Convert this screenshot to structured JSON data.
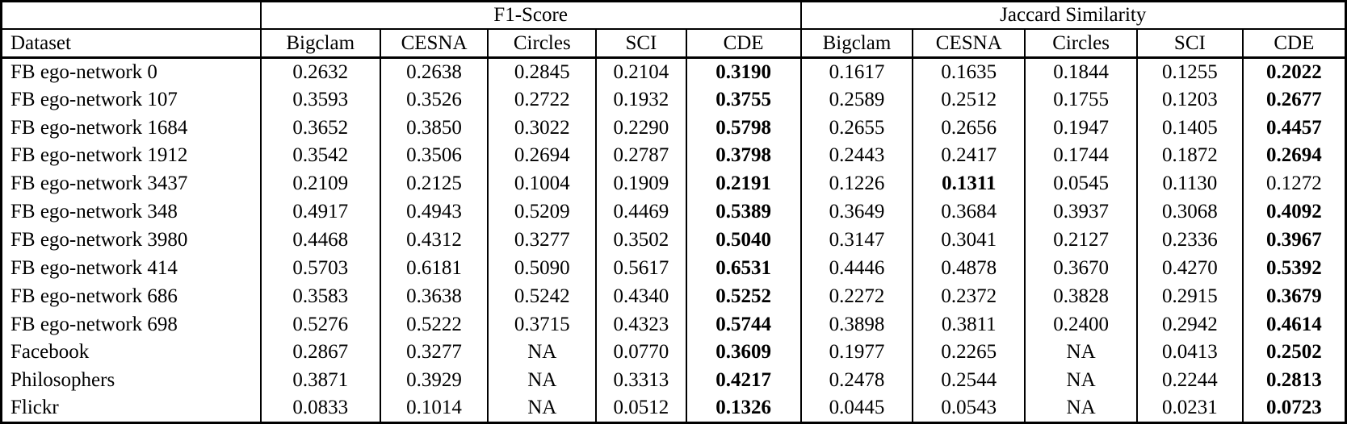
{
  "table": {
    "group_headers": [
      {
        "label": "",
        "span": 1
      },
      {
        "label": "F1-Score",
        "span": 5
      },
      {
        "label": "Jaccard Similarity",
        "span": 5
      }
    ],
    "column_headers": [
      "Dataset",
      "Bigclam",
      "CESNA",
      "Circles",
      "SCI",
      "CDE",
      "Bigclam",
      "CESNA",
      "Circles",
      "SCI",
      "CDE"
    ],
    "rows": [
      {
        "dataset": "FB ego-network 0",
        "values": [
          "0.2632",
          "0.2638",
          "0.2845",
          "0.2104",
          "0.3190",
          "0.1617",
          "0.1635",
          "0.1844",
          "0.1255",
          "0.2022"
        ],
        "bold": [
          4,
          9
        ]
      },
      {
        "dataset": "FB ego-network 107",
        "values": [
          "0.3593",
          "0.3526",
          "0.2722",
          "0.1932",
          "0.3755",
          "0.2589",
          "0.2512",
          "0.1755",
          "0.1203",
          "0.2677"
        ],
        "bold": [
          4,
          9
        ]
      },
      {
        "dataset": "FB ego-network 1684",
        "values": [
          "0.3652",
          "0.3850",
          "0.3022",
          "0.2290",
          "0.5798",
          "0.2655",
          "0.2656",
          "0.1947",
          "0.1405",
          "0.4457"
        ],
        "bold": [
          4,
          9
        ]
      },
      {
        "dataset": "FB ego-network 1912",
        "values": [
          "0.3542",
          "0.3506",
          "0.2694",
          "0.2787",
          "0.3798",
          "0.2443",
          "0.2417",
          "0.1744",
          "0.1872",
          "0.2694"
        ],
        "bold": [
          4,
          9
        ]
      },
      {
        "dataset": "FB ego-network 3437",
        "values": [
          "0.2109",
          "0.2125",
          "0.1004",
          "0.1909",
          "0.2191",
          "0.1226",
          "0.1311",
          "0.0545",
          "0.1130",
          "0.1272"
        ],
        "bold": [
          4,
          6
        ]
      },
      {
        "dataset": "FB ego-network 348",
        "values": [
          "0.4917",
          "0.4943",
          "0.5209",
          "0.4469",
          "0.5389",
          "0.3649",
          "0.3684",
          "0.3937",
          "0.3068",
          "0.4092"
        ],
        "bold": [
          4,
          9
        ]
      },
      {
        "dataset": "FB ego-network 3980",
        "values": [
          "0.4468",
          "0.4312",
          "0.3277",
          "0.3502",
          "0.5040",
          "0.3147",
          "0.3041",
          "0.2127",
          "0.2336",
          "0.3967"
        ],
        "bold": [
          4,
          9
        ]
      },
      {
        "dataset": "FB ego-network 414",
        "values": [
          "0.5703",
          "0.6181",
          "0.5090",
          "0.5617",
          "0.6531",
          "0.4446",
          "0.4878",
          "0.3670",
          "0.4270",
          "0.5392"
        ],
        "bold": [
          4,
          9
        ]
      },
      {
        "dataset": "FB ego-network 686",
        "values": [
          "0.3583",
          "0.3638",
          "0.5242",
          "0.4340",
          "0.5252",
          "0.2272",
          "0.2372",
          "0.3828",
          "0.2915",
          "0.3679"
        ],
        "bold": [
          4,
          9
        ]
      },
      {
        "dataset": "FB ego-network 698",
        "values": [
          "0.5276",
          "0.5222",
          "0.3715",
          "0.4323",
          "0.5744",
          "0.3898",
          "0.3811",
          "0.2400",
          "0.2942",
          "0.4614"
        ],
        "bold": [
          4,
          9
        ]
      },
      {
        "dataset": "Facebook",
        "values": [
          "0.2867",
          "0.3277",
          "NA",
          "0.0770",
          "0.3609",
          "0.1977",
          "0.2265",
          "NA",
          "0.0413",
          "0.2502"
        ],
        "bold": [
          4,
          9
        ]
      },
      {
        "dataset": "Philosophers",
        "values": [
          "0.3871",
          "0.3929",
          "NA",
          "0.3313",
          "0.4217",
          "0.2478",
          "0.2544",
          "NA",
          "0.2244",
          "0.2813"
        ],
        "bold": [
          4,
          9
        ]
      },
      {
        "dataset": "Flickr",
        "values": [
          "0.0833",
          "0.1014",
          "NA",
          "0.0512",
          "0.1326",
          "0.0445",
          "0.0543",
          "NA",
          "0.0231",
          "0.0723"
        ],
        "bold": [
          4,
          9
        ]
      }
    ]
  },
  "colors": {
    "border": "#000000",
    "text": "#000000",
    "background": "#ffffff"
  }
}
